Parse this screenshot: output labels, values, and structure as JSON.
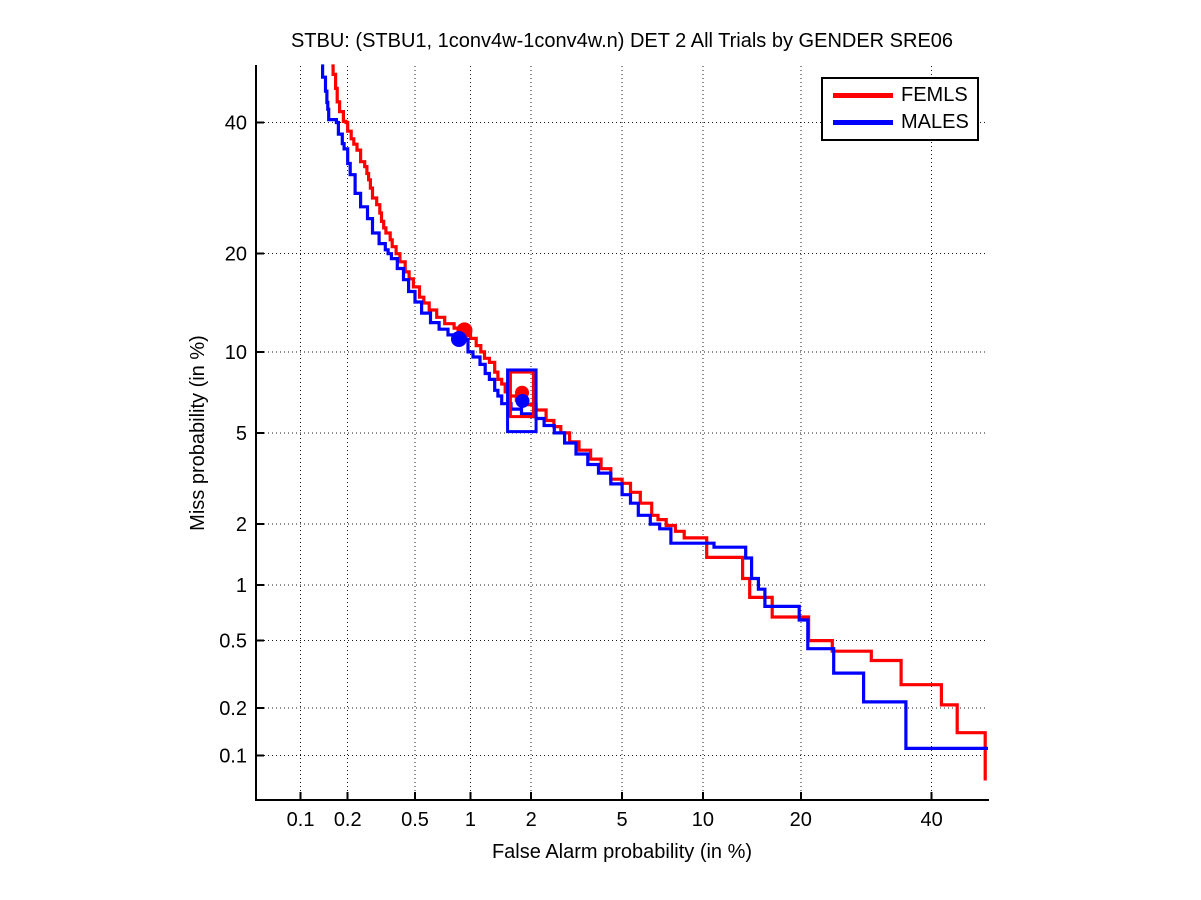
{
  "title": "STBU: (STBU1, 1conv4w-1conv4w.n) DET 2 All Trials by GENDER SRE06",
  "legend": {
    "items": [
      {
        "label": "FEMLS",
        "color": "#ff0000"
      },
      {
        "label": "MALES",
        "color": "#0000ff"
      }
    ]
  },
  "chart_data": {
    "type": "line",
    "subtype": "DET-curve (normal-deviate probit scale on both axes)",
    "title": "STBU: (STBU1, 1conv4w-1conv4w.n) DET 2 All Trials by GENDER SRE06",
    "xlabel": "False Alarm probability (in %)",
    "ylabel": "Miss probability (in %)",
    "xlim": [
      0.05,
      50
    ],
    "ylim": [
      0.05,
      50
    ],
    "xticks": [
      0.1,
      0.2,
      0.5,
      1,
      2,
      5,
      10,
      20,
      40
    ],
    "xtick_labels": [
      "0.1",
      "0.2",
      "0.5",
      "1",
      "2",
      "5",
      "10",
      "20",
      "40"
    ],
    "yticks": [
      0.1,
      0.2,
      0.5,
      1,
      2,
      5,
      10,
      20,
      40
    ],
    "ytick_labels": [
      "0.1",
      "0.2",
      "0.5",
      "1",
      "2",
      "5",
      "10",
      "20",
      "40"
    ],
    "grid": "dotted",
    "grid_color": "#000000",
    "axis_color": "#000000",
    "legend_position": "top-right",
    "series": [
      {
        "name": "FEMLS",
        "color": "#ff0000",
        "line_width": 3.2,
        "points": [
          [
            0.158,
            50
          ],
          [
            0.162,
            48.5
          ],
          [
            0.168,
            46
          ],
          [
            0.172,
            43.6
          ],
          [
            0.178,
            41.9
          ],
          [
            0.188,
            40.2
          ],
          [
            0.195,
            40
          ],
          [
            0.2,
            38.5
          ],
          [
            0.21,
            37.2
          ],
          [
            0.218,
            36.3
          ],
          [
            0.228,
            35.3
          ],
          [
            0.24,
            33.4
          ],
          [
            0.254,
            32.6
          ],
          [
            0.262,
            31.5
          ],
          [
            0.268,
            30.5
          ],
          [
            0.275,
            29.2
          ],
          [
            0.283,
            27.7
          ],
          [
            0.3,
            26.7
          ],
          [
            0.313,
            25.5
          ],
          [
            0.32,
            24.3
          ],
          [
            0.33,
            23.4
          ],
          [
            0.34,
            22.7
          ],
          [
            0.36,
            21.8
          ],
          [
            0.37,
            20.9
          ],
          [
            0.39,
            20
          ],
          [
            0.41,
            19
          ],
          [
            0.44,
            17.8
          ],
          [
            0.463,
            17
          ],
          [
            0.49,
            16.1
          ],
          [
            0.53,
            15
          ],
          [
            0.56,
            14.4
          ],
          [
            0.6,
            13.7
          ],
          [
            0.66,
            13
          ],
          [
            0.73,
            12.4
          ],
          [
            0.82,
            12
          ],
          [
            0.93,
            11.8
          ],
          [
            1,
            11.1
          ],
          [
            1.07,
            10.5
          ],
          [
            1.13,
            10
          ],
          [
            1.18,
            9.5
          ],
          [
            1.25,
            9.2
          ],
          [
            1.33,
            8.5
          ],
          [
            1.38,
            8
          ],
          [
            1.44,
            7.7
          ],
          [
            1.5,
            7.2
          ],
          [
            1.56,
            6.95
          ],
          [
            1.7,
            6.7
          ],
          [
            1.9,
            6.45
          ],
          [
            2.11,
            6.15
          ],
          [
            2.35,
            5.6
          ],
          [
            2.55,
            5.3
          ],
          [
            2.74,
            5
          ],
          [
            3,
            4.6
          ],
          [
            3.3,
            4.25
          ],
          [
            3.7,
            3.9
          ],
          [
            4.1,
            3.55
          ],
          [
            4.5,
            3.2
          ],
          [
            5,
            3.07
          ],
          [
            5.4,
            2.8
          ],
          [
            5.9,
            2.5
          ],
          [
            6.53,
            2.2
          ],
          [
            6.9,
            2.1
          ],
          [
            7.4,
            1.97
          ],
          [
            8,
            1.85
          ],
          [
            8.6,
            1.72
          ],
          [
            10.3,
            1.38
          ],
          [
            13.5,
            1.08
          ],
          [
            14.2,
            0.86
          ],
          [
            16.6,
            0.675
          ],
          [
            21,
            0.5
          ],
          [
            24.2,
            0.435
          ],
          [
            30,
            0.385
          ],
          [
            34.8,
            0.277
          ],
          [
            41.7,
            0.209
          ],
          [
            44.5,
            0.14
          ],
          [
            49.5,
            0.068
          ]
        ]
      },
      {
        "name": "MALES",
        "color": "#0000ff",
        "line_width": 3.2,
        "points": [
          [
            0.136,
            50
          ],
          [
            0.139,
            48
          ],
          [
            0.145,
            45.5
          ],
          [
            0.148,
            43.5
          ],
          [
            0.15,
            42.3
          ],
          [
            0.152,
            40.5
          ],
          [
            0.17,
            40
          ],
          [
            0.175,
            38
          ],
          [
            0.185,
            36.4
          ],
          [
            0.19,
            35.5
          ],
          [
            0.2,
            33.1
          ],
          [
            0.207,
            31.3
          ],
          [
            0.222,
            28.4
          ],
          [
            0.24,
            26.4
          ],
          [
            0.264,
            24.7
          ],
          [
            0.283,
            22.7
          ],
          [
            0.31,
            21.3
          ],
          [
            0.337,
            20.5
          ],
          [
            0.35,
            20
          ],
          [
            0.366,
            19.4
          ],
          [
            0.396,
            18.2
          ],
          [
            0.43,
            16.9
          ],
          [
            0.46,
            15.6
          ],
          [
            0.5,
            14.5
          ],
          [
            0.545,
            13.4
          ],
          [
            0.61,
            12.5
          ],
          [
            0.68,
            11.9
          ],
          [
            0.76,
            11.4
          ],
          [
            0.87,
            11
          ],
          [
            0.97,
            10
          ],
          [
            1.03,
            9.6
          ],
          [
            1.12,
            9.05
          ],
          [
            1.19,
            8.4
          ],
          [
            1.25,
            8
          ],
          [
            1.33,
            7.3
          ],
          [
            1.38,
            6.95
          ],
          [
            1.44,
            6.5
          ],
          [
            1.6,
            6.2
          ],
          [
            1.8,
            5.95
          ],
          [
            2,
            5.8
          ],
          [
            2.11,
            5.7
          ],
          [
            2.3,
            5.35
          ],
          [
            2.56,
            5
          ],
          [
            2.85,
            4.55
          ],
          [
            3.2,
            4.1
          ],
          [
            3.6,
            3.7
          ],
          [
            4,
            3.4
          ],
          [
            4.5,
            3.05
          ],
          [
            5,
            2.73
          ],
          [
            5.4,
            2.5
          ],
          [
            5.8,
            2.2
          ],
          [
            6.45,
            2
          ],
          [
            7,
            1.9
          ],
          [
            7.7,
            1.62
          ],
          [
            10.9,
            1.55
          ],
          [
            13.8,
            1.37
          ],
          [
            14.4,
            1.08
          ],
          [
            15.1,
            0.95
          ],
          [
            15.8,
            0.77
          ],
          [
            19.8,
            0.65
          ],
          [
            20.9,
            0.45
          ],
          [
            24.4,
            0.325
          ],
          [
            28.8,
            0.218
          ],
          [
            35.6,
            0.111
          ],
          [
            50,
            0.111
          ]
        ]
      }
    ],
    "markers": [
      {
        "shape": "rect",
        "series": "FEMLS",
        "fa_range": [
          1.59,
          2.05
        ],
        "miss_range": [
          5.8,
          8.5
        ],
        "color": "#ff0000",
        "stroke_width": 3
      },
      {
        "shape": "rect",
        "series": "MALES",
        "fa_range": [
          1.54,
          2.11
        ],
        "miss_range": [
          5.06,
          8.65
        ],
        "color": "#0000ff",
        "stroke_width": 3
      },
      {
        "shape": "circle",
        "series": "FEMLS",
        "fa": 0.93,
        "miss": 11.8,
        "radius": 8,
        "color": "#ff0000",
        "filled": true
      },
      {
        "shape": "circle",
        "series": "MALES",
        "fa": 0.87,
        "miss": 11.05,
        "radius": 8,
        "color": "#0000ff",
        "filled": true
      },
      {
        "shape": "circle",
        "series": "FEMLS",
        "fa": 1.81,
        "miss": 7.15,
        "radius": 7,
        "color": "#ff0000",
        "filled": true
      },
      {
        "shape": "circle",
        "series": "MALES",
        "fa": 1.82,
        "miss": 6.66,
        "radius": 7,
        "color": "#0000ff",
        "filled": true
      }
    ]
  }
}
